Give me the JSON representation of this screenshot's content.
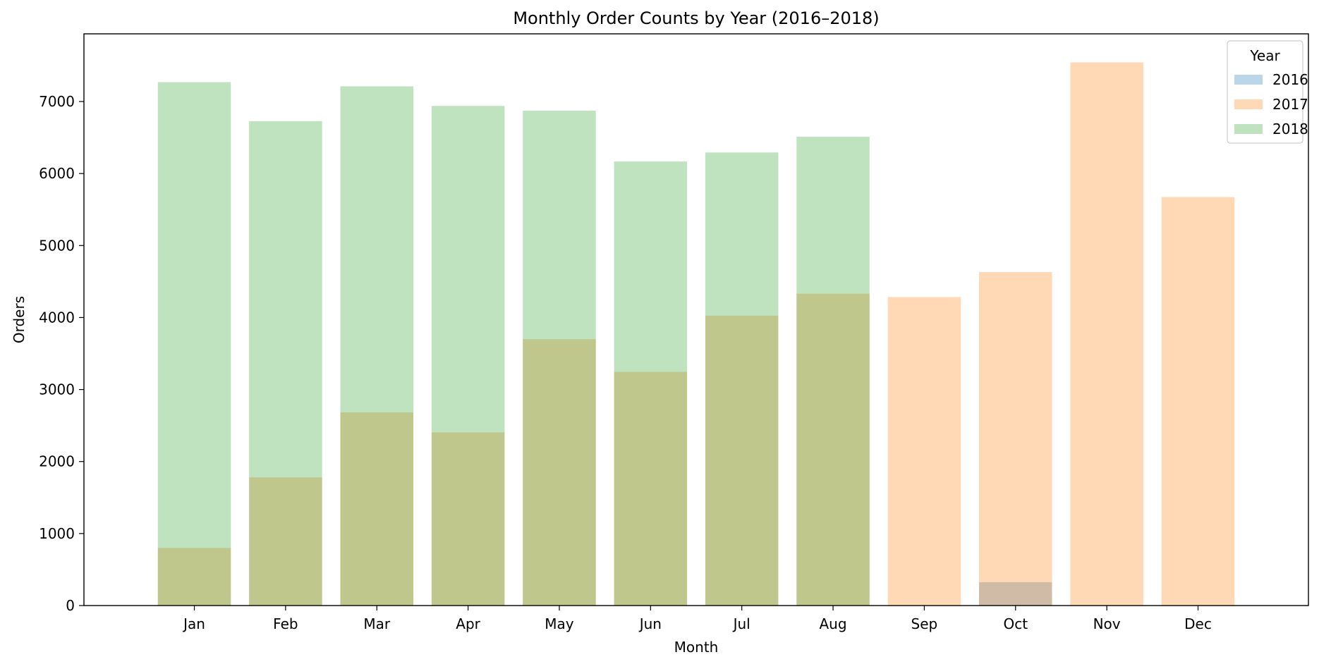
{
  "chart_data": {
    "type": "bar",
    "title": "Monthly Order Counts by Year (2016–2018)",
    "xlabel": "Month",
    "ylabel": "Orders",
    "categories": [
      "Jan",
      "Feb",
      "Mar",
      "Apr",
      "May",
      "Jun",
      "Jul",
      "Aug",
      "Sep",
      "Oct",
      "Nov",
      "Dec"
    ],
    "ylim": [
      0,
      7940
    ],
    "yticks": [
      0,
      1000,
      2000,
      3000,
      4000,
      5000,
      6000,
      7000
    ],
    "grid": false,
    "overlay": true,
    "bar_opacity": 0.3,
    "legend": {
      "title": "Year",
      "placement": "top-right"
    },
    "series": [
      {
        "name": "2016",
        "color": "#1f77b4",
        "values": [
          null,
          null,
          null,
          null,
          null,
          null,
          null,
          null,
          4,
          324,
          null,
          1
        ]
      },
      {
        "name": "2017",
        "color": "#ff7f0e",
        "values": [
          800,
          1780,
          2682,
          2404,
          3700,
          3245,
          4026,
          4331,
          4285,
          4631,
          7544,
          5673
        ]
      },
      {
        "name": "2018",
        "color": "#2ca02c",
        "values": [
          7269,
          6728,
          7211,
          6939,
          6873,
          6167,
          6292,
          6512,
          null,
          null,
          null,
          null
        ]
      }
    ]
  }
}
